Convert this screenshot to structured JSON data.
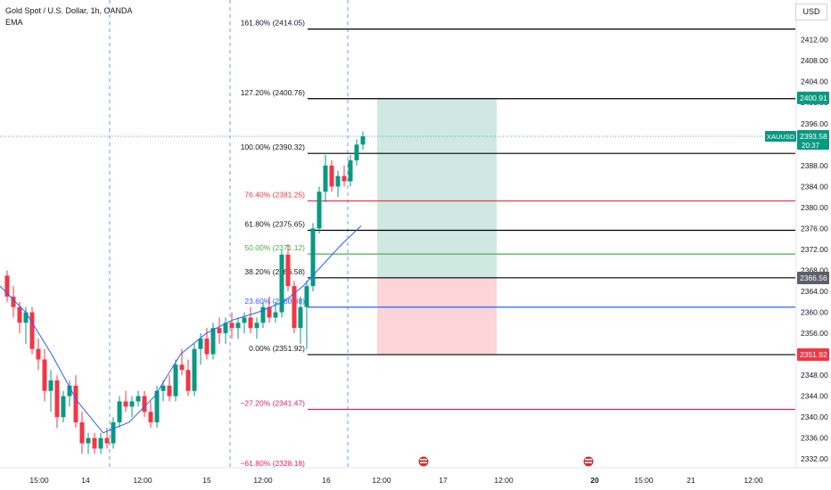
{
  "legend": {
    "symbol_line": "Gold Spot / U.S. Dollar, 1h, OANDA",
    "indicator": "EMA"
  },
  "currency_button": "USD",
  "colors": {
    "up": "#089981",
    "down": "#f23645",
    "ema": "#2962ff",
    "profit_zone": "#cfe9e2",
    "loss_zone": "#fbd5d8",
    "fib_default": "#000000",
    "fib_76": "#f23645",
    "fib_50": "#4caf50",
    "fib_23": "#2962ff",
    "fib_neg27": "#e91e63",
    "axis_text": "#131722",
    "grid_dash": "#5b7ce8"
  },
  "chart_data": {
    "type": "candlestick",
    "symbol": "XAUUSD",
    "timeframe": "1h",
    "y_axis": {
      "ylim": [
        2330,
        2418
      ],
      "ticks": [
        "2332.00",
        "2336.00",
        "2340.00",
        "2344.00",
        "2348.00",
        "2352.00",
        "2356.00",
        "2360.00",
        "2364.00",
        "2368.00",
        "2372.00",
        "2376.00",
        "2380.00",
        "2384.00",
        "2388.00",
        "2392.00",
        "2396.00",
        "2400.00",
        "2404.00",
        "2408.00",
        "2412.00"
      ]
    },
    "x_axis": {
      "ticks": [
        "15:00",
        "14",
        "12:00",
        "15",
        "12:00",
        "16",
        "12:00",
        "17",
        "12:00",
        "20",
        "15:00",
        "21",
        "12:00"
      ],
      "bold_ticks": [
        "20"
      ]
    },
    "fibonacci": [
      {
        "label": "161.80% (2414.05)",
        "price": 2414.05,
        "color_key": "fib_default"
      },
      {
        "label": "127.20% (2400.76)",
        "price": 2400.76,
        "color_key": "fib_default"
      },
      {
        "label": "100.00% (2390.32)",
        "price": 2390.32,
        "color_key": "fib_default"
      },
      {
        "label": "76.40% (2381.25)",
        "price": 2381.25,
        "color_key": "fib_76"
      },
      {
        "label": "61.80% (2375.65)",
        "price": 2375.65,
        "color_key": "fib_default"
      },
      {
        "label": "50.00% (2371.12)",
        "price": 2371.12,
        "color_key": "fib_50"
      },
      {
        "label": "38.20% (2366.58)",
        "price": 2366.58,
        "color_key": "fib_default"
      },
      {
        "label": "23.60% (2360.98)",
        "price": 2360.98,
        "color_key": "fib_23"
      },
      {
        "label": "0.00% (2351.92)",
        "price": 2351.92,
        "color_key": "fib_default"
      },
      {
        "label": "−27.20% (2341.47)",
        "price": 2341.47,
        "color_key": "fib_neg27"
      },
      {
        "label": "−61.80% (2328.18)",
        "price": 2328.18,
        "color_key": "fib_neg27"
      }
    ],
    "position": {
      "type": "long",
      "entry": 2366.56,
      "target": 2400.91,
      "stop": 2351.92
    },
    "price_tags": [
      {
        "text": "2400.91",
        "price": 2400.91,
        "color": "#089981"
      },
      {
        "text": "2366.56",
        "price": 2366.56,
        "color": "#5d606b"
      },
      {
        "text": "2351.92",
        "price": 2351.92,
        "color": "#f23645"
      }
    ],
    "last_price": {
      "symbol": "XAUUSD",
      "price": "2393.58",
      "countdown": "20:37",
      "value": 2393.58
    },
    "candles": [
      [
        2367,
        2368,
        2362,
        2363
      ],
      [
        2363,
        2365,
        2359,
        2361
      ],
      [
        2361,
        2362,
        2356,
        2358
      ],
      [
        2358,
        2361,
        2354,
        2360
      ],
      [
        2360,
        2361,
        2352,
        2353
      ],
      [
        2353,
        2355,
        2349,
        2351
      ],
      [
        2351,
        2353,
        2343,
        2345
      ],
      [
        2345,
        2349,
        2341,
        2347
      ],
      [
        2347,
        2348,
        2338,
        2340
      ],
      [
        2340,
        2345,
        2339,
        2344
      ],
      [
        2344,
        2347,
        2342,
        2346
      ],
      [
        2346,
        2348,
        2338,
        2339
      ],
      [
        2339,
        2341,
        2333,
        2335
      ],
      [
        2335,
        2337,
        2333,
        2336
      ],
      [
        2336,
        2337,
        2333,
        2334
      ],
      [
        2334,
        2337,
        2333,
        2336
      ],
      [
        2336,
        2338,
        2334,
        2335
      ],
      [
        2335,
        2340,
        2334,
        2339
      ],
      [
        2339,
        2344,
        2338,
        2343
      ],
      [
        2343,
        2345,
        2341,
        2342
      ],
      [
        2342,
        2344,
        2340,
        2343
      ],
      [
        2343,
        2345,
        2342,
        2344
      ],
      [
        2344,
        2345,
        2340,
        2341
      ],
      [
        2341,
        2343,
        2338,
        2339
      ],
      [
        2339,
        2346,
        2338,
        2345
      ],
      [
        2345,
        2347,
        2343,
        2346
      ],
      [
        2346,
        2348,
        2343,
        2344
      ],
      [
        2344,
        2351,
        2343,
        2350
      ],
      [
        2350,
        2353,
        2348,
        2349
      ],
      [
        2349,
        2351,
        2344,
        2345
      ],
      [
        2345,
        2354,
        2344,
        2353
      ],
      [
        2353,
        2356,
        2350,
        2355
      ],
      [
        2355,
        2357,
        2351,
        2352
      ],
      [
        2352,
        2358,
        2351,
        2357
      ],
      [
        2357,
        2359,
        2354,
        2356
      ],
      [
        2356,
        2359,
        2354,
        2358
      ],
      [
        2358,
        2360,
        2355,
        2357
      ],
      [
        2357,
        2359,
        2355,
        2358
      ],
      [
        2358,
        2360,
        2356,
        2359
      ],
      [
        2359,
        2361,
        2356,
        2357
      ],
      [
        2357,
        2359,
        2355,
        2358
      ],
      [
        2358,
        2362,
        2357,
        2361
      ],
      [
        2361,
        2363,
        2358,
        2359
      ],
      [
        2359,
        2362,
        2358,
        2360
      ],
      [
        2360,
        2372,
        2359,
        2371
      ],
      [
        2371,
        2373,
        2364,
        2365
      ],
      [
        2365,
        2366,
        2356,
        2357
      ],
      [
        2357,
        2363,
        2354,
        2361
      ],
      [
        2361,
        2366,
        2353,
        2365
      ],
      [
        2365,
        2377,
        2364,
        2376
      ],
      [
        2376,
        2384,
        2375,
        2383
      ],
      [
        2383,
        2390,
        2381,
        2388
      ],
      [
        2388,
        2389,
        2383,
        2384
      ],
      [
        2384,
        2387,
        2382,
        2386
      ],
      [
        2386,
        2388,
        2384,
        2385
      ],
      [
        2385,
        2390,
        2384,
        2389
      ],
      [
        2389,
        2393,
        2388,
        2392
      ],
      [
        2392,
        2394.5,
        2391,
        2393.58
      ]
    ],
    "ema": [
      [
        0,
        2365
      ],
      [
        8,
        2360
      ],
      [
        16,
        2352
      ],
      [
        24,
        2343
      ],
      [
        32,
        2337
      ],
      [
        40,
        2339
      ],
      [
        48,
        2344
      ],
      [
        56,
        2352
      ],
      [
        64,
        2356
      ],
      [
        72,
        2358.5
      ],
      [
        80,
        2360
      ],
      [
        88,
        2362
      ],
      [
        94,
        2365
      ],
      [
        100,
        2369
      ],
      [
        106,
        2373
      ],
      [
        112,
        2376.5
      ]
    ]
  }
}
